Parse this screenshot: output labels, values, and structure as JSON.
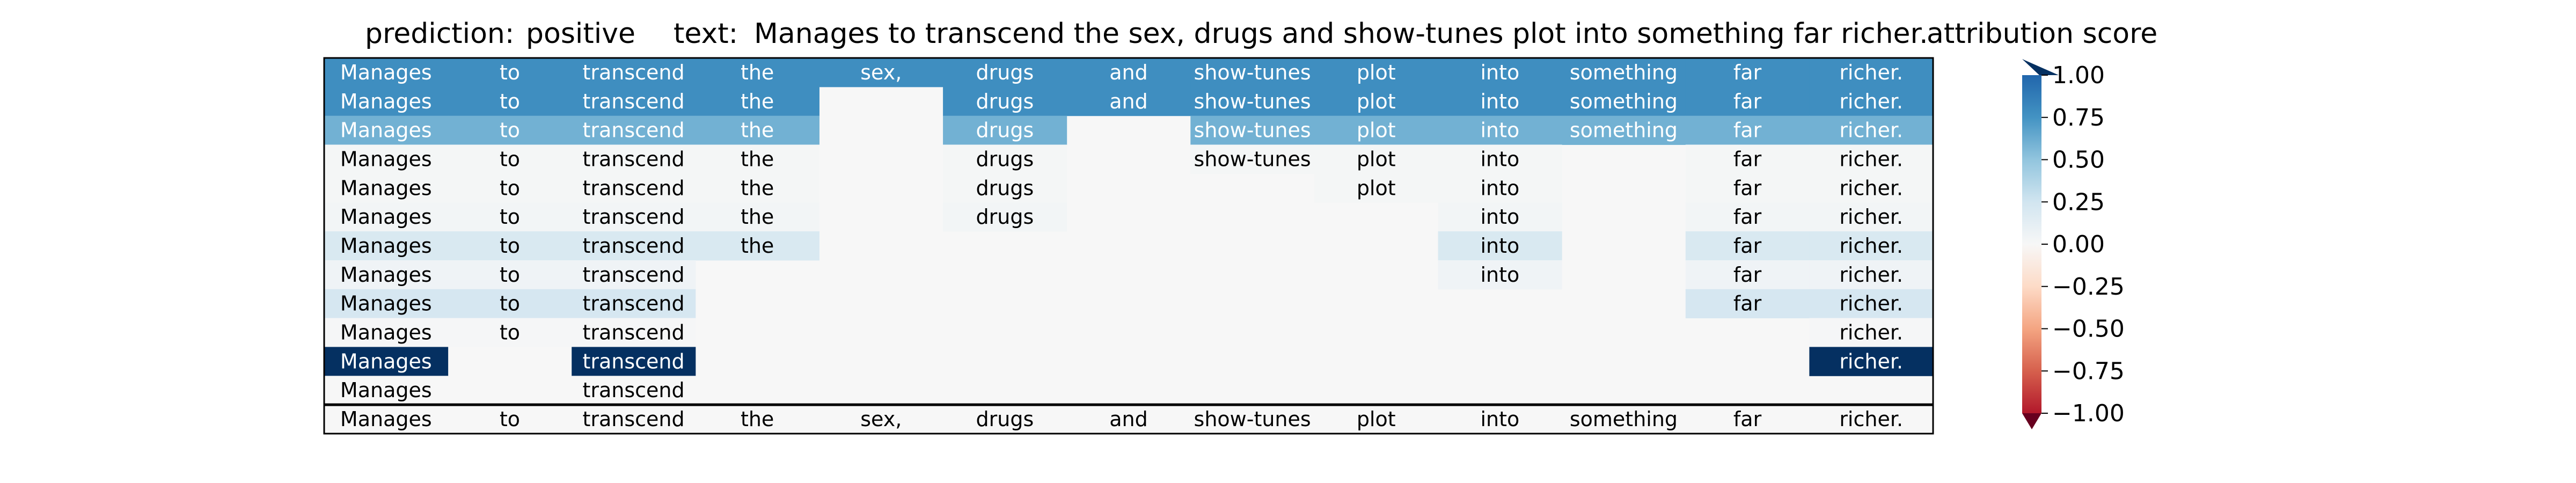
{
  "header": {
    "prediction_label": "prediction:",
    "prediction_value": "positive",
    "text_label": "text:",
    "text_value": "Manages to transcend the sex, drugs and show-tunes plot into something far richer.",
    "colorbar_title": "attribution score"
  },
  "colors": {
    "pos1": "#2166ac",
    "pos075": "#4393c3",
    "pos05": "#92c5de",
    "pos025": "#d1e5f0",
    "zero": "#f7f7f7",
    "neg025": "#fddbc7",
    "neg05": "#f4a582",
    "neg075": "#d6604d",
    "neg1": "#b2182b",
    "over": "#053061",
    "under": "#67001f"
  },
  "chart_data": {
    "type": "heatmap",
    "tokens": [
      "Manages",
      "to",
      "transcend",
      "the",
      "sex,",
      "drugs",
      "and",
      "show-tunes",
      "plot",
      "into",
      "something",
      "far",
      "richer."
    ],
    "rows": [
      {
        "present": [
          1,
          1,
          1,
          1,
          1,
          1,
          1,
          1,
          1,
          1,
          1,
          1,
          1
        ],
        "scores": [
          0.78,
          0.78,
          0.78,
          0.78,
          0.78,
          0.78,
          0.78,
          0.78,
          0.78,
          0.78,
          0.78,
          0.78,
          0.78
        ]
      },
      {
        "present": [
          1,
          1,
          1,
          1,
          0,
          1,
          1,
          1,
          1,
          1,
          1,
          1,
          1
        ],
        "scores": [
          0.78,
          0.78,
          0.78,
          0.78,
          0,
          0.78,
          0.78,
          0.78,
          0.78,
          0.78,
          0.78,
          0.78,
          0.78
        ]
      },
      {
        "present": [
          1,
          1,
          1,
          1,
          0,
          1,
          0,
          1,
          1,
          1,
          1,
          1,
          1
        ],
        "scores": [
          0.6,
          0.6,
          0.6,
          0.6,
          0,
          0.6,
          0,
          0.6,
          0.6,
          0.6,
          0.6,
          0.6,
          0.6
        ]
      },
      {
        "present": [
          1,
          1,
          1,
          1,
          0,
          1,
          0,
          1,
          1,
          1,
          0,
          1,
          1
        ],
        "scores": [
          0.02,
          0.02,
          0.02,
          0.02,
          0,
          0.02,
          0,
          0.02,
          0.02,
          0.02,
          0,
          0.02,
          0.02
        ]
      },
      {
        "present": [
          1,
          1,
          1,
          1,
          0,
          1,
          0,
          0,
          1,
          1,
          0,
          1,
          1
        ],
        "scores": [
          0.02,
          0.02,
          0.02,
          0.02,
          0,
          0.02,
          0,
          0,
          0.02,
          0.02,
          0,
          0.02,
          0.02
        ]
      },
      {
        "present": [
          1,
          1,
          1,
          1,
          0,
          1,
          0,
          0,
          0,
          1,
          0,
          1,
          1
        ],
        "scores": [
          0.03,
          0.03,
          0.03,
          0.03,
          0,
          0.03,
          0,
          0,
          0,
          0.03,
          0,
          0.03,
          0.03
        ]
      },
      {
        "present": [
          1,
          1,
          1,
          1,
          0,
          0,
          0,
          0,
          0,
          1,
          0,
          1,
          1
        ],
        "scores": [
          0.2,
          0.2,
          0.2,
          0.2,
          0,
          0,
          0,
          0,
          0,
          0.2,
          0,
          0.2,
          0.2
        ]
      },
      {
        "present": [
          1,
          1,
          1,
          0,
          0,
          0,
          0,
          0,
          0,
          1,
          0,
          1,
          1
        ],
        "scores": [
          0.05,
          0.05,
          0.05,
          0,
          0,
          0,
          0,
          0,
          0,
          0.05,
          0,
          0.05,
          0.05
        ]
      },
      {
        "present": [
          1,
          1,
          1,
          0,
          0,
          0,
          0,
          0,
          0,
          0,
          0,
          1,
          1
        ],
        "scores": [
          0.22,
          0.22,
          0.22,
          0,
          0,
          0,
          0,
          0,
          0,
          0,
          0,
          0.22,
          0.22
        ]
      },
      {
        "present": [
          1,
          1,
          1,
          0,
          0,
          0,
          0,
          0,
          0,
          0,
          0,
          0,
          1
        ],
        "scores": [
          0.01,
          0.01,
          0.01,
          0,
          0,
          0,
          0,
          0,
          0,
          0,
          0,
          0,
          0.01
        ]
      },
      {
        "present": [
          1,
          0,
          1,
          0,
          0,
          0,
          0,
          0,
          0,
          0,
          0,
          0,
          1
        ],
        "scores": [
          1.05,
          0,
          1.05,
          0,
          0,
          0,
          0,
          0,
          0,
          0,
          0,
          0,
          1.05
        ]
      },
      {
        "present": [
          1,
          0,
          1,
          0,
          0,
          0,
          0,
          0,
          0,
          0,
          0,
          0,
          0
        ],
        "scores": [
          0,
          0,
          0,
          0,
          0,
          0,
          0,
          0,
          0,
          0,
          0,
          0,
          0
        ]
      }
    ],
    "reference_row": [
      "Manages",
      "to",
      "transcend",
      "the",
      "sex,",
      "drugs",
      "and",
      "show-tunes",
      "plot",
      "into",
      "something",
      "far",
      "richer."
    ],
    "colorbar": {
      "range": [
        -1.0,
        1.0
      ],
      "ticks": [
        1.0,
        0.75,
        0.5,
        0.25,
        0.0,
        -0.25,
        -0.5,
        -0.75,
        -1.0
      ],
      "tick_labels": [
        "1.00",
        "0.75",
        "0.50",
        "0.25",
        "0.00",
        "−0.25",
        "−0.50",
        "−0.75",
        "−1.00"
      ],
      "extend": "both",
      "colormap": "RdBu"
    }
  }
}
